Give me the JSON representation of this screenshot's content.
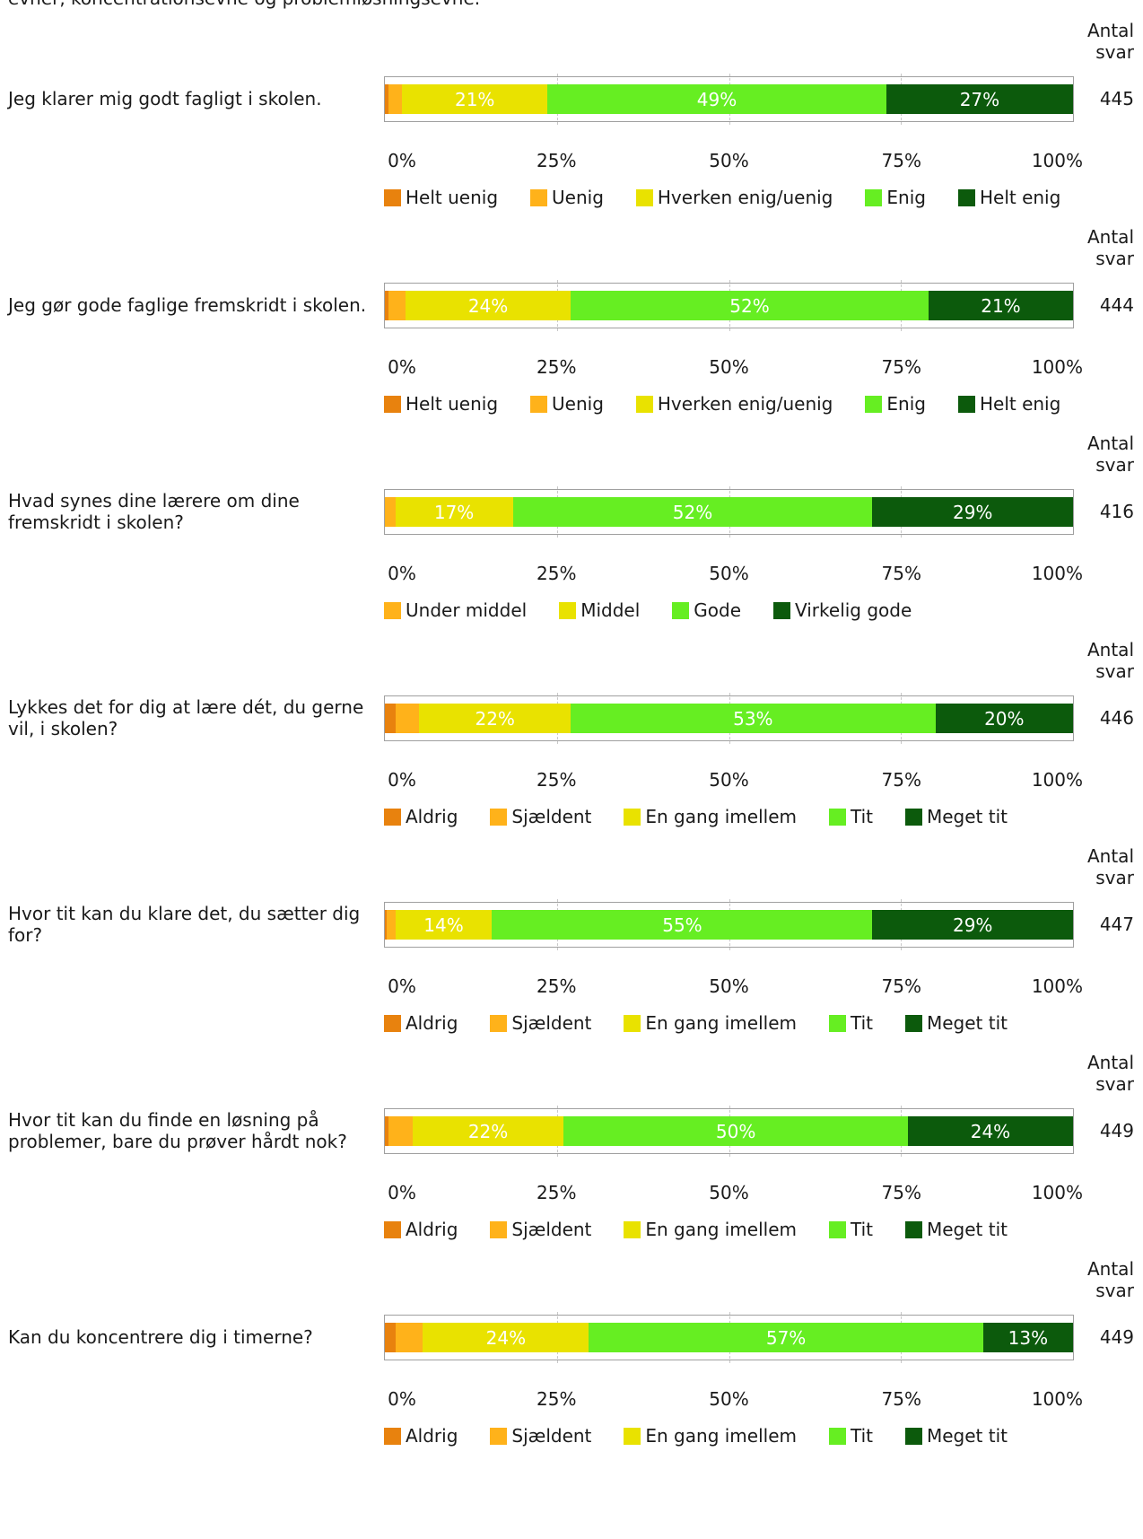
{
  "intro_text": "evner, koncentrationsevne og problemløsningsevne.",
  "antal_svar_label": [
    "Antal",
    "svar"
  ],
  "axis_ticks": [
    "0%",
    "25%",
    "50%",
    "75%",
    "100%"
  ],
  "scales": {
    "agree": {
      "labels": [
        "Helt uenig",
        "Uenig",
        "Hverken enig/uenig",
        "Enig",
        "Helt enig"
      ],
      "colors": [
        "#E8820E",
        "#FFB21A",
        "#E9E200",
        "#66EE22",
        "#0C5A0C"
      ]
    },
    "level": {
      "labels": [
        "Under middel",
        "Middel",
        "Gode",
        "Virkelig gode"
      ],
      "colors": [
        "#FFB21A",
        "#E9E200",
        "#66EE22",
        "#0C5A0C"
      ]
    },
    "frequency": {
      "labels": [
        "Aldrig",
        "Sjældent",
        "En gang imellem",
        "Tit",
        "Meget tit"
      ],
      "colors": [
        "#E8820E",
        "#FFB21A",
        "#E9E200",
        "#66EE22",
        "#0C5A0C"
      ]
    }
  },
  "chart_data": [
    {
      "type": "bar",
      "orientation": "horizontal-stacked",
      "question": "Jeg klarer mig godt fagligt i skolen.",
      "scale": "agree",
      "values": [
        0.5,
        2,
        21,
        49,
        27
      ],
      "data_labels": [
        "",
        "",
        "21%",
        "49%",
        "27%"
      ],
      "count": "445",
      "xlim": [
        0,
        100
      ]
    },
    {
      "type": "bar",
      "orientation": "horizontal-stacked",
      "question": "Jeg gør gode faglige fremskridt i skolen.",
      "scale": "agree",
      "values": [
        0.5,
        2.5,
        24,
        52,
        21
      ],
      "data_labels": [
        "",
        "",
        "24%",
        "52%",
        "21%"
      ],
      "count": "444",
      "xlim": [
        0,
        100
      ]
    },
    {
      "type": "bar",
      "orientation": "horizontal-stacked",
      "question": "Hvad synes dine lærere om dine fremskridt i skolen?",
      "scale": "level",
      "values": [
        1.5,
        17,
        52,
        29
      ],
      "data_labels": [
        "",
        "17%",
        "52%",
        "29%"
      ],
      "count": "416",
      "xlim": [
        0,
        100
      ]
    },
    {
      "type": "bar",
      "orientation": "horizontal-stacked",
      "question": "Lykkes det for dig at lære dét, du gerne vil, i skolen?",
      "scale": "frequency",
      "values": [
        1.5,
        3.5,
        22,
        53,
        20
      ],
      "data_labels": [
        "",
        "",
        "22%",
        "53%",
        "20%"
      ],
      "count": "446",
      "xlim": [
        0,
        100
      ]
    },
    {
      "type": "bar",
      "orientation": "horizontal-stacked",
      "question": "Hvor tit kan du klare det, du sætter dig for?",
      "scale": "frequency",
      "values": [
        0.2,
        1.3,
        14,
        55,
        29
      ],
      "data_labels": [
        "",
        "",
        "14%",
        "55%",
        "29%"
      ],
      "count": "447",
      "xlim": [
        0,
        100
      ]
    },
    {
      "type": "bar",
      "orientation": "horizontal-stacked",
      "question": "Hvor tit kan du finde en løsning på problemer, bare du prøver hårdt nok?",
      "scale": "frequency",
      "values": [
        0.5,
        3.5,
        22,
        50,
        24
      ],
      "data_labels": [
        "",
        "",
        "22%",
        "50%",
        "24%"
      ],
      "count": "449",
      "xlim": [
        0,
        100
      ]
    },
    {
      "type": "bar",
      "orientation": "horizontal-stacked",
      "question": "Kan du koncentrere dig i timerne?",
      "scale": "frequency",
      "values": [
        1.5,
        4,
        24,
        57,
        13
      ],
      "data_labels": [
        "",
        "",
        "24%",
        "57%",
        "13%"
      ],
      "count": "449",
      "xlim": [
        0,
        100
      ]
    }
  ]
}
